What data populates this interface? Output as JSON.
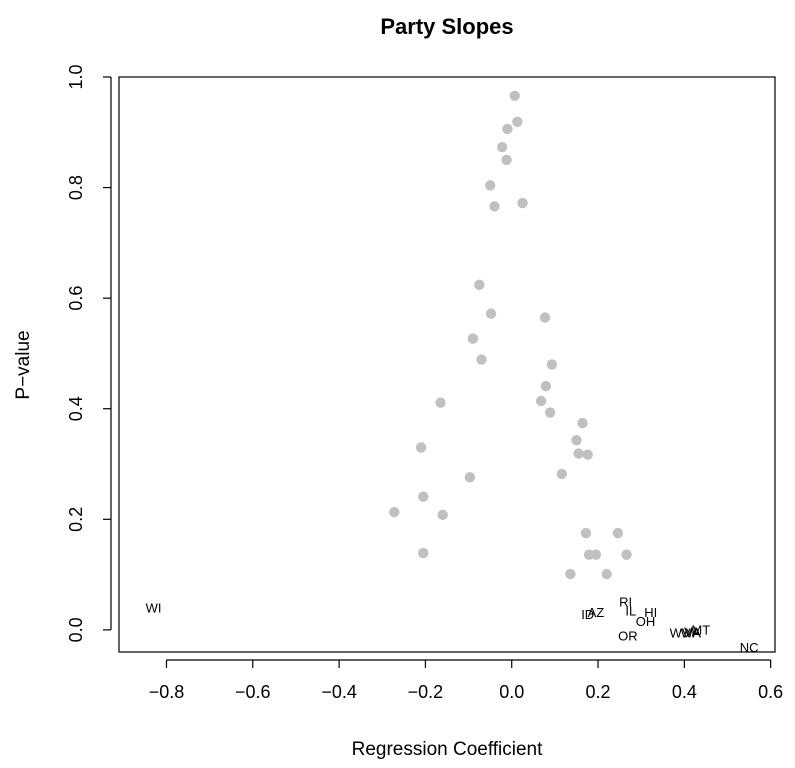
{
  "chart_data": {
    "type": "scatter",
    "title": "Party Slopes",
    "xlabel": "Regression Coefficient",
    "ylabel": "P−value",
    "xlim": [
      -0.91,
      0.61
    ],
    "ylim": [
      -0.04,
      1.0
    ],
    "x_ticks": [
      -0.8,
      -0.6,
      -0.4,
      -0.2,
      0.0,
      0.2,
      0.4,
      0.6
    ],
    "x_tick_labels": [
      "−0.8",
      "−0.6",
      "−0.4",
      "−0.2",
      "0.0",
      "0.2",
      "0.4",
      "0.6"
    ],
    "y_ticks": [
      0.0,
      0.2,
      0.4,
      0.6,
      0.8,
      1.0
    ],
    "y_tick_labels": [
      "0.0",
      "0.2",
      "0.4",
      "0.6",
      "0.8",
      "1.0"
    ],
    "grid": false,
    "colors": {
      "points": "#c0c0c0",
      "axes": "#000000",
      "labels": "#000000"
    },
    "points": [
      {
        "x": 0.007,
        "y": 0.966
      },
      {
        "x": 0.013,
        "y": 0.919
      },
      {
        "x": -0.01,
        "y": 0.906
      },
      {
        "x": -0.022,
        "y": 0.873
      },
      {
        "x": -0.012,
        "y": 0.85
      },
      {
        "x": -0.05,
        "y": 0.804
      },
      {
        "x": 0.025,
        "y": 0.772
      },
      {
        "x": -0.04,
        "y": 0.766
      },
      {
        "x": -0.075,
        "y": 0.624
      },
      {
        "x": -0.048,
        "y": 0.572
      },
      {
        "x": 0.077,
        "y": 0.565
      },
      {
        "x": -0.09,
        "y": 0.527
      },
      {
        "x": -0.07,
        "y": 0.489
      },
      {
        "x": 0.093,
        "y": 0.48
      },
      {
        "x": 0.079,
        "y": 0.441
      },
      {
        "x": -0.165,
        "y": 0.411
      },
      {
        "x": 0.068,
        "y": 0.414
      },
      {
        "x": 0.089,
        "y": 0.393
      },
      {
        "x": 0.164,
        "y": 0.374
      },
      {
        "x": 0.15,
        "y": 0.343
      },
      {
        "x": -0.21,
        "y": 0.33
      },
      {
        "x": 0.155,
        "y": 0.319
      },
      {
        "x": 0.176,
        "y": 0.317
      },
      {
        "x": 0.116,
        "y": 0.282
      },
      {
        "x": -0.097,
        "y": 0.276
      },
      {
        "x": -0.205,
        "y": 0.241
      },
      {
        "x": -0.272,
        "y": 0.213
      },
      {
        "x": -0.16,
        "y": 0.208
      },
      {
        "x": 0.172,
        "y": 0.175
      },
      {
        "x": 0.246,
        "y": 0.175
      },
      {
        "x": 0.179,
        "y": 0.136
      },
      {
        "x": 0.195,
        "y": 0.136
      },
      {
        "x": 0.266,
        "y": 0.136
      },
      {
        "x": -0.205,
        "y": 0.139
      },
      {
        "x": 0.136,
        "y": 0.101
      },
      {
        "x": 0.22,
        "y": 0.101
      }
    ],
    "text_labels": [
      {
        "text": "WI",
        "x": -0.83,
        "y": 0.04
      },
      {
        "text": "RI",
        "x": 0.264,
        "y": 0.05
      },
      {
        "text": "IL",
        "x": 0.276,
        "y": 0.034
      },
      {
        "text": "ID",
        "x": 0.176,
        "y": 0.028
      },
      {
        "text": "AZ",
        "x": 0.195,
        "y": 0.031
      },
      {
        "text": "HI",
        "x": 0.322,
        "y": 0.031
      },
      {
        "text": "OH",
        "x": 0.31,
        "y": 0.015
      },
      {
        "text": "OR",
        "x": 0.269,
        "y": -0.011
      },
      {
        "text": "WV",
        "x": 0.39,
        "y": -0.006
      },
      {
        "text": "WA",
        "x": 0.415,
        "y": -0.006
      },
      {
        "text": "VA",
        "x": 0.418,
        "y": -0.004
      },
      {
        "text": "MT",
        "x": 0.438,
        "y": 0.0
      },
      {
        "text": "NC",
        "x": 0.55,
        "y": -0.032
      }
    ]
  }
}
